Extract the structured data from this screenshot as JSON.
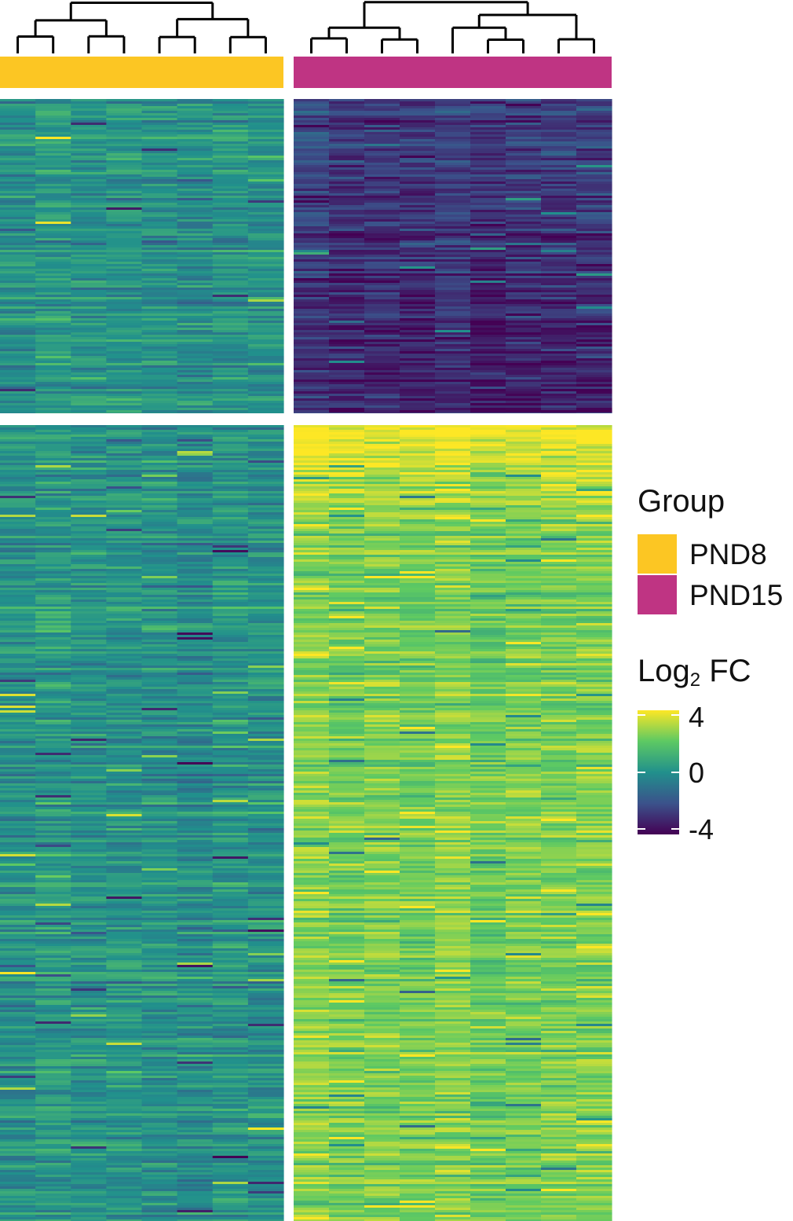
{
  "chart_data": {
    "type": "heatmap",
    "column_split": [
      {
        "group": "PND8",
        "n_samples": 8,
        "color": "#FCC623"
      },
      {
        "group": "PND15",
        "n_samples": 9,
        "color": "#BF3483"
      }
    ],
    "row_split": [
      {
        "cluster": 1,
        "mean_log2fc": {
          "PND8": 0.0,
          "PND15": -2.5
        }
      },
      {
        "cluster": 2,
        "mean_log2fc": {
          "PND8": 0.0,
          "PND15": 2.3
        }
      }
    ],
    "legend": {
      "group_title": "Group",
      "groups": [
        {
          "label": "PND8",
          "color": "#FCC623"
        },
        {
          "label": "PND15",
          "color": "#BF3483"
        }
      ],
      "scale_title_main": "Log",
      "scale_title_sub": "2",
      "scale_title_rest": " FC",
      "ticks": [
        "4",
        "0",
        "-4"
      ],
      "range": [
        -4,
        4
      ],
      "colormap": [
        "#440154",
        "#3B528B",
        "#21908C",
        "#5DC963",
        "#FDE725"
      ]
    }
  }
}
